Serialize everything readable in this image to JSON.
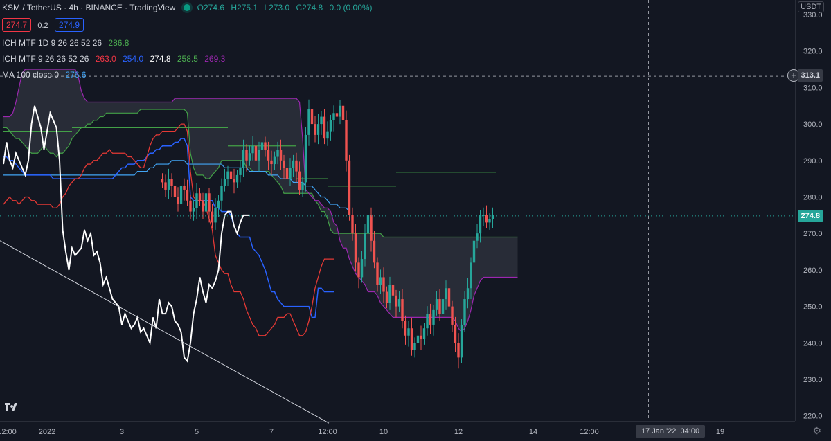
{
  "header": {
    "symbol": "KSM / TetherUS · 4h · BINANCE · TradingView",
    "open": "O274.6",
    "high": "H275.1",
    "low": "L273.0",
    "close": "C274.8",
    "change": "0.0 (0.00%)",
    "bid": "274.7",
    "spread": "0.2",
    "ask": "274.9"
  },
  "indicators": [
    {
      "label": "ICH MTF 1D 9 26 26 52 26",
      "values": [
        {
          "v": "286.8",
          "color": "green"
        }
      ]
    },
    {
      "label": "ICH MTF 9 26 26 52 26",
      "values": [
        {
          "v": "263.0",
          "color": "red"
        },
        {
          "v": "254.0",
          "color": "blue"
        },
        {
          "v": "274.8",
          "color": "white"
        },
        {
          "v": "258.5",
          "color": "green"
        },
        {
          "v": "269.3",
          "color": "purple"
        }
      ]
    },
    {
      "label": "MA 100 close 0",
      "values": [
        {
          "v": "276.6",
          "color": "lblue"
        }
      ]
    }
  ],
  "axis": {
    "currency": "USDT",
    "crosshair_price": "313.1",
    "last_price": "274.8",
    "date_label": "17 Jan '22",
    "time_label": "04:00"
  },
  "chart_data": {
    "type": "candlestick",
    "ylim": [
      217,
      333
    ],
    "y_ticks": [
      330,
      320,
      310,
      300,
      290,
      280,
      270,
      260,
      250,
      240,
      230,
      220
    ],
    "x_ticks": [
      {
        "label": "12:00",
        "bar": -1
      },
      {
        "label": "2022",
        "bar": 14
      },
      {
        "label": "3",
        "bar": 38
      },
      {
        "label": "5",
        "bar": 62
      },
      {
        "label": "7",
        "bar": 86
      },
      {
        "label": "12:00",
        "bar": 104
      },
      {
        "label": "10",
        "bar": 122
      },
      {
        "label": "12",
        "bar": 146
      },
      {
        "label": "14",
        "bar": 170
      },
      {
        "label": "12:00",
        "bar": 188
      },
      {
        "label": "19",
        "bar": 230
      }
    ],
    "last_bar_index": 157,
    "crosshair_price": 313.1,
    "crosshair_bar": 207,
    "last_price": 274.8,
    "closes": [
      284,
      282,
      285,
      283,
      280,
      278,
      283,
      282,
      279,
      276,
      277,
      281,
      279,
      276,
      281,
      276,
      273,
      277,
      279,
      283,
      285,
      287,
      285,
      284,
      286,
      288,
      293,
      290,
      292,
      294,
      290,
      293,
      295,
      293,
      290,
      289,
      291,
      293,
      290,
      288,
      285,
      288,
      290,
      287,
      282,
      284,
      297,
      304,
      300,
      297,
      300,
      302,
      296,
      298,
      301,
      303,
      302,
      305,
      301,
      290,
      275,
      270,
      262,
      258,
      263,
      270,
      275,
      268,
      262,
      256,
      258,
      254,
      251,
      256,
      253,
      250,
      252,
      246,
      242,
      244,
      238,
      240,
      242,
      241,
      244,
      248,
      245,
      249,
      252,
      248,
      252,
      255,
      250,
      245,
      240,
      236,
      245,
      252,
      255,
      262,
      268,
      270,
      275,
      275,
      273,
      274,
      275
    ],
    "opens_first": 285,
    "tenkan": [
      278,
      279,
      280,
      279,
      279,
      278,
      279,
      280,
      280,
      279,
      279,
      278,
      278,
      278,
      278,
      278,
      277,
      277,
      278,
      280,
      281,
      283,
      284,
      285,
      285,
      286,
      288,
      289,
      289,
      290,
      290,
      291,
      292,
      292,
      293,
      292,
      292,
      292,
      292,
      292,
      291,
      291,
      290,
      289,
      288,
      288,
      291,
      294,
      296,
      297,
      297,
      298,
      298,
      298,
      298,
      298,
      299,
      300,
      300,
      298,
      287,
      280,
      279,
      279,
      279,
      277,
      274,
      271,
      264,
      262,
      260,
      259,
      259,
      256,
      254,
      254,
      254,
      252,
      249,
      247,
      245,
      244,
      242,
      242,
      242,
      243,
      244,
      245,
      247,
      247,
      247,
      248,
      248,
      246,
      244,
      242,
      242,
      243,
      246,
      250,
      255,
      258,
      261,
      263,
      263,
      263,
      263
    ],
    "kijun": [
      291,
      291,
      290,
      290,
      289,
      288,
      287,
      286,
      286,
      286,
      286,
      286,
      286,
      286,
      286,
      286,
      285,
      285,
      285,
      285,
      285,
      285,
      285,
      285,
      285,
      285,
      285,
      285,
      285,
      285,
      285,
      285,
      285,
      285,
      285,
      285,
      286,
      287,
      288,
      288,
      289,
      289,
      289,
      290,
      290,
      290,
      291,
      292,
      292,
      293,
      293,
      294,
      294,
      294,
      294,
      295,
      295,
      296,
      296,
      294,
      280,
      279,
      279,
      279,
      279,
      279,
      279,
      279,
      277,
      277,
      276,
      276,
      276,
      275,
      272,
      270,
      269,
      269,
      269,
      269,
      266,
      265,
      264,
      262,
      260,
      257,
      254,
      254,
      252,
      251,
      250,
      250,
      250,
      250,
      250,
      250,
      250,
      250,
      250,
      247,
      247,
      255,
      255,
      254,
      254,
      254,
      254
    ],
    "chikou": [
      289,
      295,
      290,
      288,
      292,
      290,
      288,
      286,
      290,
      300,
      305,
      302,
      299,
      293,
      298,
      303,
      301,
      299,
      290,
      271,
      265,
      260,
      266,
      264,
      265,
      266,
      271,
      268,
      270,
      264,
      265,
      262,
      256,
      258,
      255,
      252,
      251,
      250,
      245,
      248,
      246,
      244,
      245,
      247,
      243,
      244,
      242,
      240,
      247,
      244,
      252,
      248,
      248,
      251,
      250,
      246,
      245,
      243,
      236,
      235,
      240,
      248,
      252,
      258,
      254,
      251,
      256,
      255,
      257,
      260,
      270,
      275,
      276,
      276,
      272,
      270,
      273,
      275,
      275,
      275
    ],
    "ma100": [
      286,
      286,
      286,
      286,
      286,
      286,
      286,
      286,
      286,
      286,
      286,
      286,
      286,
      286,
      286,
      286,
      286,
      286,
      286,
      286,
      286,
      286,
      286,
      286,
      286,
      286,
      286,
      286,
      286,
      286,
      286,
      286,
      286,
      286,
      286,
      286,
      286,
      286,
      286,
      286,
      286,
      286,
      286,
      287,
      287,
      287,
      287,
      288,
      288,
      289,
      289,
      289,
      289,
      289,
      290,
      290,
      290,
      290,
      290,
      289,
      289,
      289,
      289,
      289,
      289,
      289,
      289,
      289,
      289,
      289,
      289,
      288,
      288,
      288,
      288,
      288,
      288,
      288,
      288,
      287,
      287,
      287,
      287,
      287,
      287,
      286,
      286,
      286,
      286,
      285,
      285,
      285,
      285,
      284,
      284,
      284,
      284,
      283,
      283,
      283,
      282,
      281,
      280,
      280,
      279,
      278,
      278,
      278,
      277,
      277,
      277,
      276
    ],
    "daily_kijun": [
      {
        "from": 0,
        "to": 22,
        "value": 298
      },
      {
        "from": 22,
        "to": 72,
        "value": 299
      },
      {
        "from": 72,
        "to": 84,
        "value": 294
      },
      {
        "from": 84,
        "to": 94,
        "value": 294
      },
      {
        "from": 94,
        "to": 104,
        "value": 285
      },
      {
        "from": 104,
        "to": 126,
        "value": 283
      },
      {
        "from": 126,
        "to": 158,
        "value": 286.8
      }
    ],
    "cloud_a": [
      299,
      299,
      298,
      297,
      296,
      296,
      295,
      294,
      293,
      292,
      292,
      292,
      293,
      294,
      293,
      292,
      292,
      291,
      292,
      292,
      293,
      294,
      296,
      297,
      298,
      299,
      299,
      300,
      300,
      301,
      301,
      302,
      302,
      303,
      303,
      303,
      303,
      303,
      303,
      303,
      303,
      303,
      303,
      303,
      304,
      304,
      304,
      304,
      304,
      304,
      304,
      304,
      304,
      304,
      304,
      304,
      304,
      304,
      304,
      303,
      292,
      288,
      286,
      286,
      286,
      285,
      285,
      286,
      287,
      288,
      290,
      290,
      290,
      290,
      290,
      290,
      290,
      290,
      288,
      288,
      287,
      287,
      287,
      287,
      287,
      287,
      286,
      285,
      284,
      283,
      281,
      281,
      281,
      281,
      281,
      281,
      281,
      281,
      281,
      281,
      279,
      278,
      276,
      276,
      274,
      271,
      270,
      270,
      270,
      270,
      270,
      270,
      270,
      270,
      270,
      270,
      270,
      270,
      270,
      270,
      270,
      270,
      269,
      269,
      269,
      269,
      269,
      269,
      269,
      269,
      269,
      269,
      269,
      269,
      269,
      269,
      269,
      269,
      269,
      269,
      269,
      269,
      269,
      269,
      269,
      269,
      269,
      269,
      269,
      269,
      269,
      269,
      269,
      269,
      269,
      269,
      269,
      269,
      269,
      269,
      269,
      269,
      269,
      269,
      269,
      269
    ],
    "cloud_b": [
      302,
      302,
      302,
      303,
      306,
      310,
      314,
      315,
      315,
      315,
      315,
      315,
      315,
      315,
      315,
      315,
      315,
      315,
      315,
      315,
      315,
      315,
      315,
      315,
      313,
      309,
      307,
      306,
      306,
      306,
      306,
      306,
      306,
      306,
      306,
      306,
      306,
      306,
      306,
      306,
      306,
      306,
      306,
      306,
      306,
      306,
      306,
      306,
      306,
      306,
      306,
      306,
      306,
      306,
      306,
      307,
      307,
      307,
      307,
      307,
      307,
      307,
      307,
      307,
      307,
      307,
      307,
      307,
      307,
      307,
      307,
      307,
      307,
      307,
      307,
      307,
      307,
      307,
      307,
      307,
      307,
      307,
      307,
      307,
      307,
      307,
      307,
      307,
      307,
      307,
      307,
      307,
      307,
      307,
      307,
      306,
      296,
      282,
      281,
      280,
      279,
      279,
      278,
      277,
      277,
      276,
      273,
      272,
      268,
      266,
      266,
      263,
      261,
      259,
      258,
      257,
      256,
      254,
      254,
      254,
      253,
      251,
      250,
      249,
      248,
      247,
      247,
      247,
      247,
      247,
      247,
      247,
      247,
      247,
      247,
      247,
      247,
      247,
      247,
      247,
      247,
      247,
      247,
      247,
      247,
      246,
      244,
      243,
      244,
      246,
      249,
      253,
      255,
      257,
      258,
      258,
      258,
      258,
      258,
      258,
      258,
      258,
      258,
      258,
      258,
      258
    ],
    "trendline": [
      {
        "bar": 0,
        "price": 268
      },
      {
        "bar": 100,
        "price": 218
      }
    ]
  }
}
